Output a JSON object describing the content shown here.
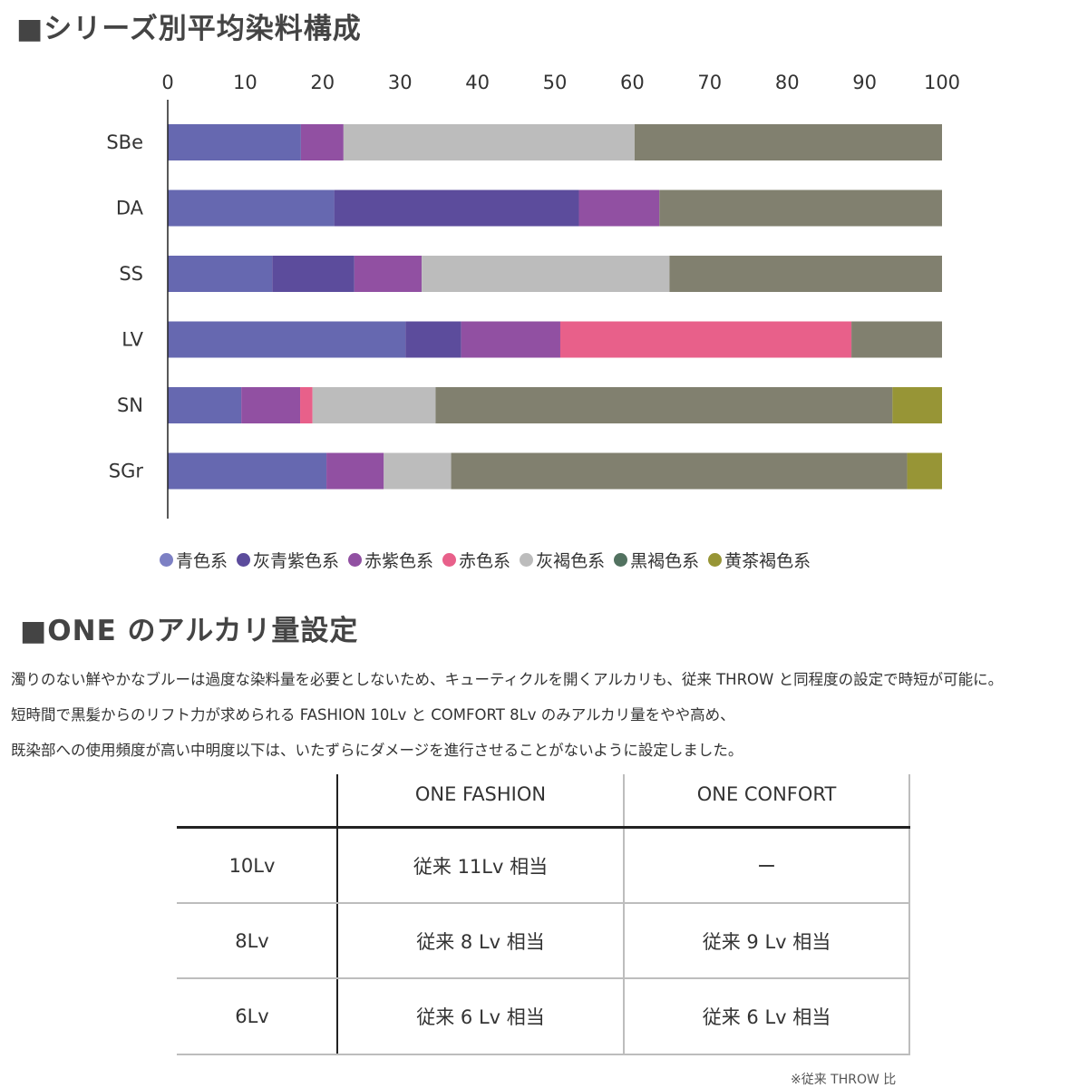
{
  "headings": {
    "chart": "■シリーズ別平均染料構成",
    "alkali": "■ONE のアルカリ量設定"
  },
  "chart_data": {
    "type": "bar",
    "orientation": "horizontal",
    "stacked": true,
    "title": "■シリーズ別平均染料構成",
    "xlim": [
      0,
      100
    ],
    "x_ticks": [
      0,
      10,
      20,
      30,
      40,
      50,
      60,
      70,
      80,
      90,
      100
    ],
    "x_axis_position": "top",
    "grid": false,
    "legend_position": "bottom",
    "categories": [
      "SBe",
      "DA",
      "SS",
      "LV",
      "SN",
      "SGr"
    ],
    "series": [
      {
        "name": "青色系",
        "color": "#6668b0",
        "values": [
          17.2,
          21.5,
          13.5,
          30.7,
          9.5,
          20.5
        ]
      },
      {
        "name": "灰青紫色系",
        "color": "#5c4c9c",
        "values": [
          0,
          31.6,
          10.6,
          7.2,
          0,
          0
        ]
      },
      {
        "name": "赤紫色系",
        "color": "#9150a2",
        "values": [
          5.5,
          10.4,
          8.7,
          12.8,
          7.6,
          7.4
        ]
      },
      {
        "name": "赤色系",
        "color": "#e8608a",
        "values": [
          0,
          0,
          0,
          37.6,
          1.6,
          0
        ]
      },
      {
        "name": "灰褐色系",
        "color": "#bcbcbc",
        "values": [
          37.6,
          0,
          32.0,
          0,
          15.9,
          8.7
        ]
      },
      {
        "name": "黒褐色系",
        "color": "#81806f",
        "values": [
          39.7,
          36.5,
          35.2,
          11.7,
          59.0,
          58.9
        ]
      },
      {
        "name": "黄茶褐色系",
        "color": "#979536",
        "values": [
          0,
          0,
          0,
          0,
          6.4,
          4.5
        ]
      }
    ],
    "legend_dot_colors": [
      "#7d80c4",
      "#5c4c9c",
      "#9150a2",
      "#e8608a",
      "#bcbcbc",
      "#527260",
      "#979536"
    ]
  },
  "paragraphs": [
    "濁りのない鮮やかなブルーは過度な染料量を必要としないため、キューティクルを開くアルカリも、従来 THROW と同程度の設定で時短が可能に。",
    "短時間で黒髪からのリフト力が求められる FASHION 10Lv と COMFORT 8Lv のみアルカリ量をやや高め、",
    "既染部への使用頻度が高い中明度以下は、いたずらにダメージを進行させることがないように設定しました。"
  ],
  "table": {
    "headers": [
      "",
      "ONE FASHION",
      "ONE CONFORT"
    ],
    "rows": [
      [
        "10Lv",
        "従来 11Lv 相当",
        "ー"
      ],
      [
        "8Lv",
        "従来 8 Lv 相当",
        "従来 9 Lv 相当"
      ],
      [
        "6Lv",
        "従来 6 Lv 相当",
        "従来 6 Lv 相当"
      ]
    ]
  },
  "note": "※従来 THROW 比"
}
